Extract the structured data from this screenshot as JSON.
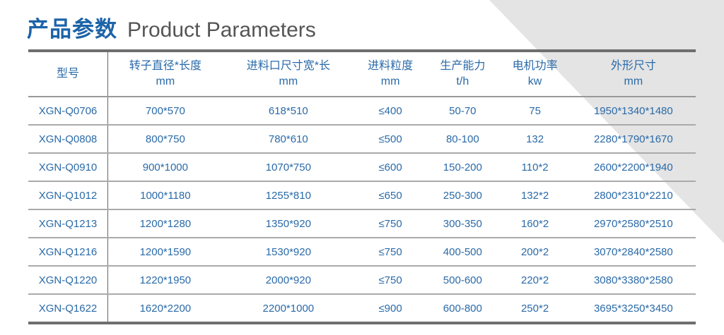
{
  "title": {
    "cn": "产品参数",
    "en": "Product Parameters"
  },
  "colors": {
    "accent": "#1c63a8",
    "text": "#2a6aa8",
    "rule": "#6e6e6e",
    "background_shape": "#e4e4e4"
  },
  "table": {
    "headers": [
      {
        "label": "型号",
        "unit": ""
      },
      {
        "label": "转子直径*长度",
        "unit": "mm"
      },
      {
        "label": "进料口尺寸宽*长",
        "unit": "mm"
      },
      {
        "label": "进料粒度",
        "unit": "mm"
      },
      {
        "label": "生产能力",
        "unit": "t/h"
      },
      {
        "label": "电机功率",
        "unit": "kw"
      },
      {
        "label": "外形尺寸",
        "unit": "mm"
      }
    ],
    "rows": [
      [
        "XGN-Q0706",
        "700*570",
        "618*510",
        "≤400",
        "50-70",
        "75",
        "1950*1340*1480"
      ],
      [
        "XGN-Q0808",
        "800*750",
        "780*610",
        "≤500",
        "80-100",
        "132",
        "2280*1790*1670"
      ],
      [
        "XGN-Q0910",
        "900*1000",
        "1070*750",
        "≤600",
        "150-200",
        "110*2",
        "2600*2200*1940"
      ],
      [
        "XGN-Q1012",
        "1000*1180",
        "1255*810",
        "≤650",
        "250-300",
        "132*2",
        "2800*2310*2210"
      ],
      [
        "XGN-Q1213",
        "1200*1280",
        "1350*920",
        "≤750",
        "300-350",
        "160*2",
        "2970*2580*2510"
      ],
      [
        "XGN-Q1216",
        "1200*1590",
        "1530*920",
        "≤750",
        "400-500",
        "200*2",
        "3070*2840*2580"
      ],
      [
        "XGN-Q1220",
        "1220*1950",
        "2000*920",
        "≤750",
        "500-600",
        "220*2",
        "3080*3380*2580"
      ],
      [
        "XGN-Q1622",
        "1620*2200",
        "2200*1000",
        "≤900",
        "600-800",
        "250*2",
        "3695*3250*3450"
      ]
    ]
  }
}
